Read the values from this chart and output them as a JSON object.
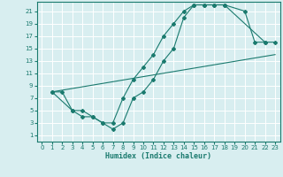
{
  "xlabel": "Humidex (Indice chaleur)",
  "bg_color": "#d8eef0",
  "grid_color": "#ffffff",
  "line_color": "#1a7a6e",
  "xlim": [
    -0.5,
    23.5
  ],
  "ylim": [
    0,
    22.5
  ],
  "xticks": [
    0,
    1,
    2,
    3,
    4,
    5,
    6,
    7,
    8,
    9,
    10,
    11,
    12,
    13,
    14,
    15,
    16,
    17,
    18,
    19,
    20,
    21,
    22,
    23
  ],
  "yticks": [
    1,
    3,
    5,
    7,
    9,
    11,
    13,
    15,
    17,
    19,
    21
  ],
  "line1_x": [
    1,
    2,
    3,
    4,
    5,
    6,
    7,
    8,
    9,
    10,
    11,
    12,
    13,
    14,
    15,
    16,
    17,
    18,
    22,
    23
  ],
  "line1_y": [
    8,
    8,
    5,
    4,
    4,
    3,
    2,
    3,
    7,
    8,
    10,
    13,
    15,
    20,
    22,
    22,
    22,
    22,
    16,
    16
  ],
  "line2_x": [
    1,
    3,
    4,
    5,
    6,
    7,
    8,
    9,
    10,
    11,
    12,
    13,
    14,
    15,
    16,
    17,
    18,
    20,
    21,
    22
  ],
  "line2_y": [
    8,
    5,
    5,
    4,
    3,
    3,
    7,
    10,
    12,
    14,
    17,
    19,
    21,
    22,
    22,
    22,
    22,
    21,
    16,
    16
  ],
  "line3_x": [
    1,
    23
  ],
  "line3_y": [
    8,
    14
  ],
  "marker_size": 2.0,
  "line_width": 0.8,
  "tick_fontsize": 5,
  "xlabel_fontsize": 6
}
